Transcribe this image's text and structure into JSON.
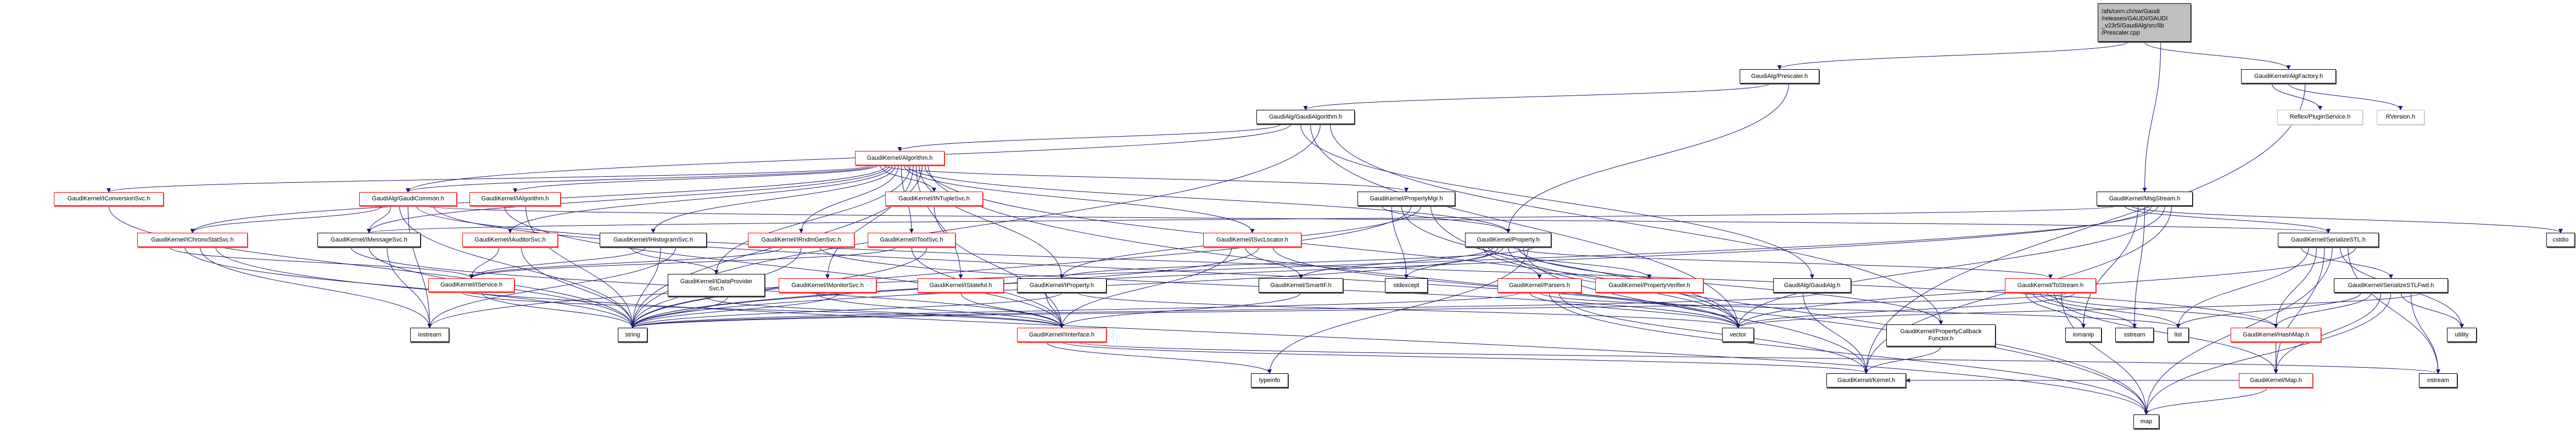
{
  "colors": {
    "edge": "#191970",
    "red_border": "#ff0000",
    "black_border": "#000000",
    "gray_border": "#bfbfbf",
    "root_fill": "#bfbfbf"
  },
  "nodes": [
    {
      "id": "root",
      "label": "/afs/cern.ch/sw/Gaudi\n/releases/GAUDI/GAUDI\n_v23r5/GaudiAlg/src/lib\n/Prescaler.cpp",
      "style": "root"
    },
    {
      "id": "prescaler",
      "label": "GaudiAlg/Prescaler.h",
      "style": "black"
    },
    {
      "id": "algfactory",
      "label": "GaudiKernel/AlgFactory.h",
      "style": "black"
    },
    {
      "id": "gaudialgorithm",
      "label": "GaudiAlg/GaudiAlgorithm.h",
      "style": "black"
    },
    {
      "id": "pluginservice",
      "label": "Reflex/PluginService.h",
      "style": "gray"
    },
    {
      "id": "rversion",
      "label": "RVersion.h",
      "style": "gray"
    },
    {
      "id": "algorithm",
      "label": "GaudiKernel/Algorithm.h",
      "style": "red"
    },
    {
      "id": "msgstream",
      "label": "GaudiKernel/MsgStream.h",
      "style": "black"
    },
    {
      "id": "iconversionsvc",
      "label": "GaudiKernel/IConversionSvc.h",
      "style": "red"
    },
    {
      "id": "gaudicommon",
      "label": "GaudiAlg/GaudiCommon.h",
      "style": "red"
    },
    {
      "id": "ialgorithm",
      "label": "GaudiKernel/IAlgorithm.h",
      "style": "red"
    },
    {
      "id": "intuplesvc",
      "label": "GaudiKernel/INTupleSvc.h",
      "style": "red"
    },
    {
      "id": "propertymgr",
      "label": "GaudiKernel/PropertyMgr.h",
      "style": "black"
    },
    {
      "id": "ichronostatsvc",
      "label": "GaudiKernel/IChronoStatSvc.h",
      "style": "red"
    },
    {
      "id": "imessagesvc",
      "label": "GaudiKernel/IMessageSvc.h",
      "style": "black"
    },
    {
      "id": "iauditorsvc",
      "label": "GaudiKernel/IAuditorSvc.h",
      "style": "red"
    },
    {
      "id": "ihistogramsvc",
      "label": "GaudiKernel/IHistogramSvc.h",
      "style": "black"
    },
    {
      "id": "irndmgensvc",
      "label": "GaudiKernel/IRndmGenSvc.h",
      "style": "red"
    },
    {
      "id": "itoolsvc",
      "label": "GaudiKernel/IToolSvc.h",
      "style": "red"
    },
    {
      "id": "isvclocator",
      "label": "GaudiKernel/ISvcLocator.h",
      "style": "red"
    },
    {
      "id": "property",
      "label": "GaudiKernel/Property.h",
      "style": "black"
    },
    {
      "id": "serializestl",
      "label": "GaudiKernel/SerializeSTL.h",
      "style": "black"
    },
    {
      "id": "cstdio",
      "label": "cstdio",
      "style": "black"
    },
    {
      "id": "iservice",
      "label": "GaudiKernel/IService.h",
      "style": "red"
    },
    {
      "id": "idataprovidersvc",
      "label": "GaudiKernel/IDataProvider\nSvc.h",
      "style": "black"
    },
    {
      "id": "imonitorsvc",
      "label": "GaudiKernel/IMonitorSvc.h",
      "style": "red"
    },
    {
      "id": "istateful",
      "label": "GaudiKernel/IStateful.h",
      "style": "red"
    },
    {
      "id": "iproperty",
      "label": "GaudiKernel/IProperty.h",
      "style": "black"
    },
    {
      "id": "smartif",
      "label": "GaudiKernel/SmartIF.h",
      "style": "black"
    },
    {
      "id": "stdexcept",
      "label": "stdexcept",
      "style": "black"
    },
    {
      "id": "parsers",
      "label": "GaudiKernel/Parsers.h",
      "style": "red"
    },
    {
      "id": "propertyverifier",
      "label": "GaudiKernel/PropertyVerifier.h",
      "style": "red"
    },
    {
      "id": "gaudialg",
      "label": "GaudiAlg/GaudiAlg.h",
      "style": "black"
    },
    {
      "id": "tostream",
      "label": "GaudiKernel/ToStream.h",
      "style": "red"
    },
    {
      "id": "serializestlfwd",
      "label": "GaudiKernel/SerializeSTLFwd.h",
      "style": "black"
    },
    {
      "id": "iostream",
      "label": "iostream",
      "style": "black"
    },
    {
      "id": "string",
      "label": "string",
      "style": "black"
    },
    {
      "id": "iinterface",
      "label": "GaudiKernel/IInterface.h",
      "style": "red"
    },
    {
      "id": "vector",
      "label": "vector",
      "style": "black"
    },
    {
      "id": "propertycallbackfunctor",
      "label": "GaudiKernel/PropertyCallback\nFunctor.h",
      "style": "black"
    },
    {
      "id": "iomanip",
      "label": "iomanip",
      "style": "black"
    },
    {
      "id": "sstream",
      "label": "sstream",
      "style": "black"
    },
    {
      "id": "list",
      "label": "list",
      "style": "black"
    },
    {
      "id": "hashmap",
      "label": "GaudiKernel/HashMap.h",
      "style": "red"
    },
    {
      "id": "utility",
      "label": "utility",
      "style": "black"
    },
    {
      "id": "typeinfo",
      "label": "typeinfo",
      "style": "black"
    },
    {
      "id": "kernel",
      "label": "GaudiKernel/Kernel.h",
      "style": "black"
    },
    {
      "id": "map_h",
      "label": "GaudiKernel/Map.h",
      "style": "red"
    },
    {
      "id": "ostream",
      "label": "ostream",
      "style": "black"
    },
    {
      "id": "map",
      "label": "map",
      "style": "black"
    }
  ],
  "edges": [
    [
      "root",
      "prescaler"
    ],
    [
      "root",
      "algfactory"
    ],
    [
      "root",
      "msgstream"
    ],
    [
      "prescaler",
      "gaudialgorithm"
    ],
    [
      "prescaler",
      "property"
    ],
    [
      "algfactory",
      "pluginservice"
    ],
    [
      "algfactory",
      "rversion"
    ],
    [
      "algfactory",
      "kernel"
    ],
    [
      "gaudialgorithm",
      "algorithm"
    ],
    [
      "gaudialgorithm",
      "gaudicommon"
    ],
    [
      "gaudialgorithm",
      "gaudialg"
    ],
    [
      "gaudialgorithm",
      "vector"
    ],
    [
      "gaudialgorithm",
      "string"
    ],
    [
      "gaudialgorithm",
      "propertycallbackfunctor"
    ],
    [
      "algorithm",
      "iconversionsvc"
    ],
    [
      "algorithm",
      "gaudicommon"
    ],
    [
      "algorithm",
      "ialgorithm"
    ],
    [
      "algorithm",
      "intuplesvc"
    ],
    [
      "algorithm",
      "propertymgr"
    ],
    [
      "algorithm",
      "ichronostatsvc"
    ],
    [
      "algorithm",
      "imessagesvc"
    ],
    [
      "algorithm",
      "iauditorsvc"
    ],
    [
      "algorithm",
      "ihistogramsvc"
    ],
    [
      "algorithm",
      "irndmgensvc"
    ],
    [
      "algorithm",
      "itoolsvc"
    ],
    [
      "algorithm",
      "isvclocator"
    ],
    [
      "algorithm",
      "property"
    ],
    [
      "algorithm",
      "idataprovidersvc"
    ],
    [
      "algorithm",
      "imonitorsvc"
    ],
    [
      "algorithm",
      "istateful"
    ],
    [
      "algorithm",
      "iproperty"
    ],
    [
      "algorithm",
      "string"
    ],
    [
      "algorithm",
      "vector"
    ],
    [
      "algorithm",
      "map"
    ],
    [
      "gaudicommon",
      "ichronostatsvc"
    ],
    [
      "gaudicommon",
      "imessagesvc"
    ],
    [
      "gaudicommon",
      "string"
    ],
    [
      "gaudicommon",
      "iostream"
    ],
    [
      "gaudicommon",
      "hashmap"
    ],
    [
      "gaudicommon",
      "serializestl"
    ],
    [
      "gaudicommon",
      "vector"
    ],
    [
      "iconversionsvc",
      "string"
    ],
    [
      "ialgorithm",
      "iinterface"
    ],
    [
      "ialgorithm",
      "string"
    ],
    [
      "intuplesvc",
      "iinterface"
    ],
    [
      "propertymgr",
      "property"
    ],
    [
      "propertymgr",
      "stdexcept"
    ],
    [
      "propertymgr",
      "vector"
    ],
    [
      "propertymgr",
      "string"
    ],
    [
      "propertymgr",
      "iproperty"
    ],
    [
      "propertymgr",
      "map"
    ],
    [
      "ichronostatsvc",
      "iservice"
    ],
    [
      "ichronostatsvc",
      "string"
    ],
    [
      "ichronostatsvc",
      "iostream"
    ],
    [
      "ichronostatsvc",
      "map"
    ],
    [
      "imessagesvc",
      "iinterface"
    ],
    [
      "imessagesvc",
      "string"
    ],
    [
      "imessagesvc",
      "iostream"
    ],
    [
      "iauditorsvc",
      "iservice"
    ],
    [
      "iauditorsvc",
      "string"
    ],
    [
      "ihistogramsvc",
      "idataprovidersvc"
    ],
    [
      "ihistogramsvc",
      "iservice"
    ],
    [
      "ihistogramsvc",
      "string"
    ],
    [
      "ihistogramsvc",
      "iostream"
    ],
    [
      "irndmgensvc",
      "iservice"
    ],
    [
      "irndmgensvc",
      "string"
    ],
    [
      "irndmgensvc",
      "vector"
    ],
    [
      "itoolsvc",
      "iservice"
    ],
    [
      "itoolsvc",
      "iinterface"
    ],
    [
      "itoolsvc",
      "string"
    ],
    [
      "isvclocator",
      "iinterface"
    ],
    [
      "isvclocator",
      "smartif"
    ],
    [
      "isvclocator",
      "string"
    ],
    [
      "isvclocator",
      "vector"
    ],
    [
      "iservice",
      "iinterface"
    ],
    [
      "iservice",
      "string"
    ],
    [
      "idataprovidersvc",
      "iinterface"
    ],
    [
      "idataprovidersvc",
      "string"
    ],
    [
      "imonitorsvc",
      "iinterface"
    ],
    [
      "imonitorsvc",
      "string"
    ],
    [
      "istateful",
      "iinterface"
    ],
    [
      "iproperty",
      "iinterface"
    ],
    [
      "iproperty",
      "string"
    ],
    [
      "iproperty",
      "vector"
    ],
    [
      "smartif",
      "iinterface"
    ],
    [
      "property",
      "parsers"
    ],
    [
      "property",
      "propertyverifier"
    ],
    [
      "property",
      "smartif"
    ],
    [
      "property",
      "stdexcept"
    ],
    [
      "property",
      "string"
    ],
    [
      "property",
      "vector"
    ],
    [
      "property",
      "tostream"
    ],
    [
      "property",
      "propertycallbackfunctor"
    ],
    [
      "property",
      "kernel"
    ],
    [
      "property",
      "typeinfo"
    ],
    [
      "property",
      "iproperty"
    ],
    [
      "parsers",
      "string"
    ],
    [
      "parsers",
      "vector"
    ],
    [
      "parsers",
      "list"
    ],
    [
      "parsers",
      "map"
    ],
    [
      "parsers",
      "kernel"
    ],
    [
      "gaudialg",
      "kernel"
    ],
    [
      "gaudialg",
      "string"
    ],
    [
      "tostream",
      "iomanip"
    ],
    [
      "tostream",
      "sstream"
    ],
    [
      "tostream",
      "list"
    ],
    [
      "tostream",
      "hashmap"
    ],
    [
      "tostream",
      "map_h"
    ],
    [
      "tostream",
      "map"
    ],
    [
      "tostream",
      "string"
    ],
    [
      "tostream",
      "vector"
    ],
    [
      "propertycallbackfunctor",
      "kernel"
    ],
    [
      "msgstream",
      "imessagesvc"
    ],
    [
      "msgstream",
      "serializestl"
    ],
    [
      "msgstream",
      "cstdio"
    ],
    [
      "msgstream",
      "iomanip"
    ],
    [
      "msgstream",
      "sstream"
    ],
    [
      "msgstream",
      "string"
    ],
    [
      "msgstream",
      "iostream"
    ],
    [
      "msgstream",
      "vector"
    ],
    [
      "msgstream",
      "kernel"
    ],
    [
      "serializestl",
      "serializestlfwd"
    ],
    [
      "serializestl",
      "list"
    ],
    [
      "serializestl",
      "hashmap"
    ],
    [
      "serializestl",
      "map_h"
    ],
    [
      "serializestl",
      "map"
    ],
    [
      "serializestl",
      "utility"
    ],
    [
      "serializestl",
      "ostream"
    ],
    [
      "serializestl",
      "vector"
    ],
    [
      "serializestlfwd",
      "list"
    ],
    [
      "serializestlfwd",
      "hashmap"
    ],
    [
      "serializestlfwd",
      "map_h"
    ],
    [
      "serializestlfwd",
      "map"
    ],
    [
      "serializestlfwd",
      "utility"
    ],
    [
      "serializestlfwd",
      "ostream"
    ],
    [
      "serializestlfwd",
      "vector"
    ],
    [
      "hashmap",
      "map_h"
    ],
    [
      "map_h",
      "map"
    ],
    [
      "map_h",
      "kernel"
    ],
    [
      "iinterface",
      "typeinfo"
    ],
    [
      "iinterface",
      "kernel"
    ],
    [
      "iinterface",
      "ostream"
    ]
  ]
}
